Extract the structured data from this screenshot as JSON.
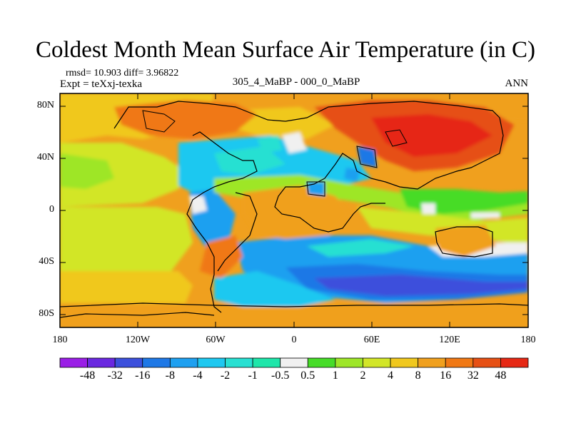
{
  "title": "Coldest Month Mean Surface Air Temperature (in C)",
  "stats": {
    "rmsd_line": "rmsd= 10.903 diff= 3.96822"
  },
  "experiment": "Expt = teXxj-texka",
  "comparison": "305_4_MaBP - 000_0_MaBP",
  "season": "ANN",
  "map": {
    "lat_labels": [
      "80N",
      "40N",
      "0",
      "40S",
      "80S"
    ],
    "lon_labels": [
      "180",
      "120W",
      "60W",
      "0",
      "60E",
      "120E",
      "180"
    ]
  },
  "colorbar": {
    "labels": [
      "-48",
      "-32",
      "-16",
      "-8",
      "-4",
      "-2",
      "-1",
      "-0.5",
      "0.5",
      "1",
      "2",
      "4",
      "8",
      "16",
      "32",
      "48"
    ],
    "colors": [
      "#9a1ee6",
      "#6a28e0",
      "#3c50dc",
      "#1e78e6",
      "#1ea0f0",
      "#1ec8f0",
      "#28e0d2",
      "#1ee6aa",
      "#f0f0f0",
      "#46dc28",
      "#9ee628",
      "#d2e628",
      "#f0c81e",
      "#f0a01e",
      "#f07814",
      "#e65014",
      "#e62814"
    ]
  }
}
